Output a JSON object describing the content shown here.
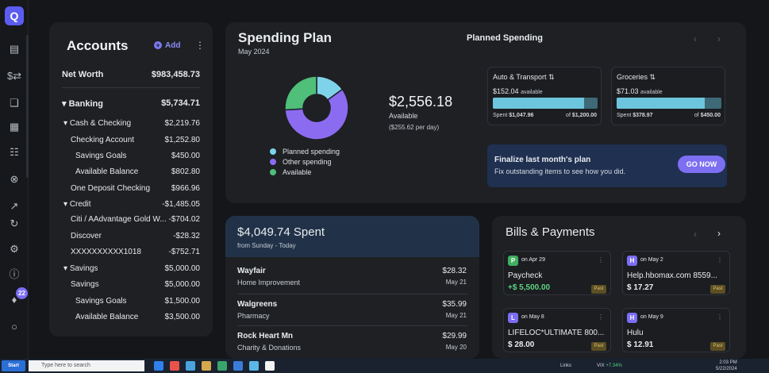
{
  "sidebar": {
    "logo": "Q",
    "icons": [
      "dashboard-icon",
      "transactions-icon",
      "accounts-icon",
      "calendar-icon",
      "reports-icon",
      "planning-icon",
      "investments-icon",
      "refresh-icon",
      "settings-icon",
      "help-icon",
      "notifications-icon",
      "profile-icon"
    ],
    "notification_count": "22"
  },
  "accounts": {
    "title": "Accounts",
    "add_label": "Add",
    "net_worth_label": "Net Worth",
    "net_worth_value": "$983,458.73",
    "rows": [
      {
        "label": "Banking",
        "value": "$5,734.71"
      },
      {
        "label": "Cash & Checking",
        "value": "$2,219.76"
      },
      {
        "label": "Checking Account",
        "value": "$1,252.80"
      },
      {
        "label": "Savings Goals",
        "value": "$450.00"
      },
      {
        "label": "Available Balance",
        "value": "$802.80"
      },
      {
        "label": "One Deposit Checking",
        "value": "$966.96"
      },
      {
        "label": "Credit",
        "value": "-$1,485.05"
      },
      {
        "label": "Citi / AAdvantage Gold W...",
        "value": "-$704.02"
      },
      {
        "label": "Discover",
        "value": "-$28.32"
      },
      {
        "label": "XXXXXXXXXX1018",
        "value": "-$752.71"
      },
      {
        "label": "Savings",
        "value": "$5,000.00"
      },
      {
        "label": "Savings",
        "value": "$5,000.00"
      },
      {
        "label": "Savings Goals",
        "value": "$1,500.00"
      },
      {
        "label": "Available Balance",
        "value": "$3,500.00"
      }
    ]
  },
  "plan": {
    "title": "Spending Plan",
    "subtitle": "May 2024",
    "available_amount": "$2,556.18",
    "available_label": "Available",
    "per_day": "($255.62 per day)",
    "planned_spending_title": "Planned Spending",
    "legend": [
      {
        "label": "Planned spending",
        "color": "#7ed3ea"
      },
      {
        "label": "Other spending",
        "color": "#8b6cf0"
      },
      {
        "label": "Available",
        "color": "#4fbf7a"
      }
    ],
    "donut": {
      "planned": 0.15,
      "other": 0.59,
      "available": 0.26
    },
    "categories": [
      {
        "name": "Auto & Transport",
        "available_amount": "$152.04",
        "available_word": "available",
        "spent_label": "Spent",
        "spent": "$1,047.96",
        "of_label": "of",
        "budget": "$1,200.00",
        "fill": 0.873
      },
      {
        "name": "Groceries",
        "available_amount": "$71.03",
        "available_word": "available",
        "spent_label": "Spent",
        "spent": "$378.97",
        "of_label": "of",
        "budget": "$450.00",
        "fill": 0.842
      }
    ],
    "finalize_title": "Finalize last month's plan",
    "finalize_sub": "Fix outstanding items to see how you did.",
    "go_now": "GO NOW"
  },
  "spent": {
    "title": "$4,049.74 Spent",
    "subtitle": "from Sunday - Today",
    "transactions": [
      {
        "merchant": "Wayfair",
        "category": "Home Improvement",
        "amount": "$28.32",
        "date": "May 21"
      },
      {
        "merchant": "Walgreens",
        "category": "Pharmacy",
        "amount": "$35.99",
        "date": "May 21"
      },
      {
        "merchant": "Rock Heart Mn",
        "category": "Charity & Donations",
        "amount": "$29.99",
        "date": "May 20"
      }
    ]
  },
  "bills": {
    "title": "Bills & Payments",
    "items": [
      {
        "initial": "P",
        "color": "#3fae5f",
        "date": "on Apr 29",
        "name": "Paycheck",
        "amount": "+$ 5,500.00",
        "status": "Past",
        "income": true
      },
      {
        "initial": "H",
        "color": "#7b6df5",
        "date": "on May 2",
        "name": "Help.hbomax.com 8559...",
        "amount": "$ 17.27",
        "status": "Past",
        "income": false
      },
      {
        "initial": "L",
        "color": "#7b6df5",
        "date": "on May 8",
        "name": "LIFELOC*ULTIMATE 800...",
        "amount": "$ 28.00",
        "status": "Past",
        "income": false
      },
      {
        "initial": "H",
        "color": "#7b6df5",
        "date": "on May 9",
        "name": "Hulu",
        "amount": "$ 12.91",
        "status": "Past",
        "income": false
      }
    ]
  },
  "taskbar": {
    "start": "Start",
    "search_placeholder": "Type here to search",
    "links": "Links",
    "vix_label": "VIX",
    "vix_change": "+7.34%",
    "time": "2:03 PM",
    "date": "5/22/2024"
  }
}
